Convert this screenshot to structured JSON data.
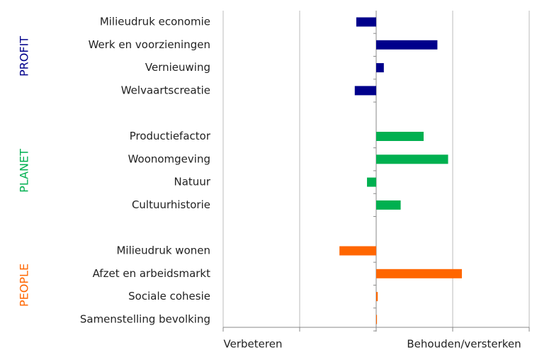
{
  "chart_data": {
    "type": "bar",
    "orientation": "horizontal",
    "groups": [
      {
        "name": "PROFIT",
        "color": "#00008b",
        "categories": [
          "Milieudruk economie",
          "Werk en voorzieningen",
          "Vernieuwing",
          "Welvaartscreatie"
        ],
        "values": [
          -0.13,
          0.4,
          0.05,
          -0.14
        ]
      },
      {
        "name": "PLANET",
        "color": "#00b050",
        "categories": [
          "Productiefactor",
          "Woonomgeving",
          "Natuur",
          "Cultuurhistorie"
        ],
        "values": [
          0.31,
          0.47,
          -0.06,
          0.16
        ]
      },
      {
        "name": "PEOPLE",
        "color": "#ff6600",
        "categories": [
          "Milieudruk wonen",
          "Afzet en arbeidsmarkt",
          "Sociale cohesie",
          "Samenstelling bevolking"
        ],
        "values": [
          -0.24,
          0.56,
          0.01,
          0.005
        ]
      }
    ],
    "x_label_left": "Verbeteren",
    "x_label_right": "Behouden/versterken",
    "xlim": [
      -1,
      1
    ],
    "xticks": [
      -1,
      -0.5,
      0,
      0.5,
      1
    ],
    "grid": true
  }
}
